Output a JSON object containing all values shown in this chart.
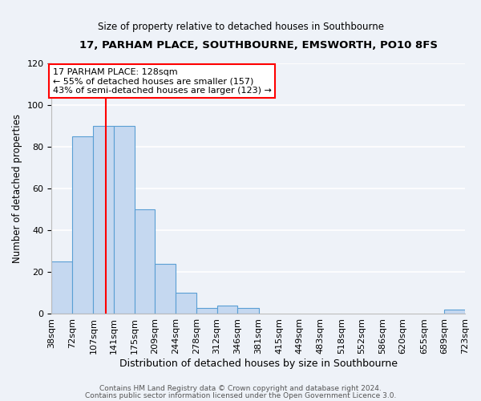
{
  "title": "17, PARHAM PLACE, SOUTHBOURNE, EMSWORTH, PO10 8FS",
  "subtitle": "Size of property relative to detached houses in Southbourne",
  "xlabel": "Distribution of detached houses by size in Southbourne",
  "ylabel": "Number of detached properties",
  "bin_edges": [
    38,
    72,
    107,
    141,
    175,
    209,
    244,
    278,
    312,
    346,
    381,
    415,
    449,
    483,
    518,
    552,
    586,
    620,
    655,
    689,
    723
  ],
  "bin_labels": [
    "38sqm",
    "72sqm",
    "107sqm",
    "141sqm",
    "175sqm",
    "209sqm",
    "244sqm",
    "278sqm",
    "312sqm",
    "346sqm",
    "381sqm",
    "415sqm",
    "449sqm",
    "483sqm",
    "518sqm",
    "552sqm",
    "586sqm",
    "620sqm",
    "655sqm",
    "689sqm",
    "723sqm"
  ],
  "counts": [
    25,
    85,
    90,
    90,
    50,
    24,
    10,
    3,
    4,
    3,
    0,
    0,
    0,
    0,
    0,
    0,
    0,
    0,
    0,
    2
  ],
  "bar_color": "#c5d8f0",
  "bar_edge_color": "#5a9fd4",
  "vline_x": 128,
  "vline_color": "red",
  "annotation_title": "17 PARHAM PLACE: 128sqm",
  "annotation_line1": "← 55% of detached houses are smaller (157)",
  "annotation_line2": "43% of semi-detached houses are larger (123) →",
  "annotation_box_color": "white",
  "annotation_box_edge": "red",
  "ylim": [
    0,
    120
  ],
  "yticks": [
    0,
    20,
    40,
    60,
    80,
    100,
    120
  ],
  "footer1": "Contains HM Land Registry data © Crown copyright and database right 2024.",
  "footer2": "Contains public sector information licensed under the Open Government Licence 3.0.",
  "background_color": "#eef2f8",
  "grid_color": "#ffffff",
  "title_fontsize": 9.5,
  "subtitle_fontsize": 8.5,
  "xlabel_fontsize": 9,
  "ylabel_fontsize": 8.5,
  "tick_fontsize": 8,
  "annotation_fontsize": 8,
  "footer_fontsize": 6.5
}
